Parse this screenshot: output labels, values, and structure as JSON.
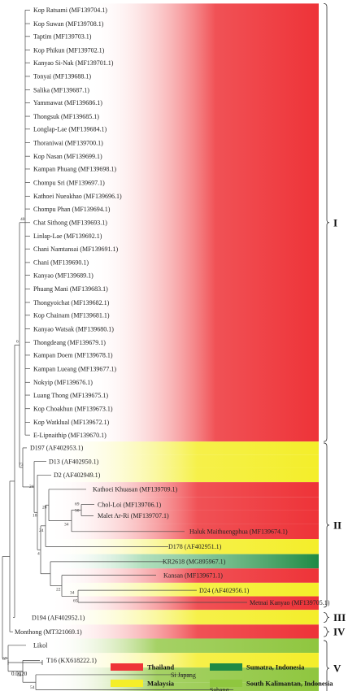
{
  "tips": [
    {
      "id": "t01",
      "label": "Kop Ratsami (MF139704.1)",
      "group": "Thailand",
      "clade": "I"
    },
    {
      "id": "t02",
      "label": "Kop Suwan (MF139708.1)",
      "group": "Thailand",
      "clade": "I"
    },
    {
      "id": "t03",
      "label": "Taptim (MF139703.1)",
      "group": "Thailand",
      "clade": "I"
    },
    {
      "id": "t04",
      "label": "Kop Phikun (MF139702.1)",
      "group": "Thailand",
      "clade": "I"
    },
    {
      "id": "t05",
      "label": "Kanyao Si-Nak (MF139701.1)",
      "group": "Thailand",
      "clade": "I"
    },
    {
      "id": "t06",
      "label": "Tonyai (MF139688.1)",
      "group": "Thailand",
      "clade": "I"
    },
    {
      "id": "t07",
      "label": "Salika (MF139687.1)",
      "group": "Thailand",
      "clade": "I"
    },
    {
      "id": "t08",
      "label": "Yammawat (MF139686.1)",
      "group": "Thailand",
      "clade": "I"
    },
    {
      "id": "t09",
      "label": "Thongsuk (MF139685.1)",
      "group": "Thailand",
      "clade": "I"
    },
    {
      "id": "t10",
      "label": "Longlap-Lae (MF139684.1)",
      "group": "Thailand",
      "clade": "I"
    },
    {
      "id": "t11",
      "label": "Thoraniwai (MF139700.1)",
      "group": "Thailand",
      "clade": "I"
    },
    {
      "id": "t12",
      "label": "Kop Nasan (MF139699.1)",
      "group": "Thailand",
      "clade": "I"
    },
    {
      "id": "t13",
      "label": "Kampan Phuang (MF139698.1)",
      "group": "Thailand",
      "clade": "I"
    },
    {
      "id": "t14",
      "label": "Chompu Sri (MF139697.1)",
      "group": "Thailand",
      "clade": "I"
    },
    {
      "id": "t15",
      "label": "Kathoei Nueakhao (MF139696.1)",
      "group": "Thailand",
      "clade": "I"
    },
    {
      "id": "t16",
      "label": "Chompu Phan (MF139694.1)",
      "group": "Thailand",
      "clade": "I"
    },
    {
      "id": "t17",
      "label": "Chat Sithong (MF139693.1)",
      "group": "Thailand",
      "clade": "I"
    },
    {
      "id": "t18",
      "label": "Linlap-Lae (MF139692.1)",
      "group": "Thailand",
      "clade": "I"
    },
    {
      "id": "t19",
      "label": "Chani Namtansai (MF139691.1)",
      "group": "Thailand",
      "clade": "I"
    },
    {
      "id": "t20",
      "label": "Chani (MF139690.1)",
      "group": "Thailand",
      "clade": "I"
    },
    {
      "id": "t21",
      "label": "Kanyao (MF139689.1)",
      "group": "Thailand",
      "clade": "I"
    },
    {
      "id": "t22",
      "label": "Phuang Mani (MF139683.1)",
      "group": "Thailand",
      "clade": "I"
    },
    {
      "id": "t23",
      "label": "Thongyoichat (MF139682.1)",
      "group": "Thailand",
      "clade": "I"
    },
    {
      "id": "t24",
      "label": "Kop Chainam (MF139681.1)",
      "group": "Thailand",
      "clade": "I"
    },
    {
      "id": "t25",
      "label": "Kanyao Watsak (MF139680.1)",
      "group": "Thailand",
      "clade": "I"
    },
    {
      "id": "t26",
      "label": "Thongdeang (MF139679.1)",
      "group": "Thailand",
      "clade": "I"
    },
    {
      "id": "t27",
      "label": "Kampan Doem (MF139678.1)",
      "group": "Thailand",
      "clade": "I"
    },
    {
      "id": "t28",
      "label": "Kampan Lueang (MF139677.1)",
      "group": "Thailand",
      "clade": "I"
    },
    {
      "id": "t29",
      "label": "Nokyip (MF139676.1)",
      "group": "Thailand",
      "clade": "I"
    },
    {
      "id": "t30",
      "label": "Luang Thong (MF139675.1)",
      "group": "Thailand",
      "clade": "I"
    },
    {
      "id": "t31",
      "label": "Kop Choakhun (MF139673.1)",
      "group": "Thailand",
      "clade": "I"
    },
    {
      "id": "t32",
      "label": "Kop Watklual (MF139672.1)",
      "group": "Thailand",
      "clade": "I"
    },
    {
      "id": "t33",
      "label": "E-Lipnaithip (MF139670.1)",
      "group": "Thailand",
      "clade": "I"
    },
    {
      "id": "t34",
      "label": "D197 (AF402953.1)",
      "group": "Malaysia",
      "clade": "II"
    },
    {
      "id": "t35",
      "label": "D13 (AF402950.1)",
      "group": "Malaysia",
      "clade": "II"
    },
    {
      "id": "t36",
      "label": "D2 (AF402949.1)",
      "group": "Malaysia",
      "clade": "II"
    },
    {
      "id": "t37",
      "label": "Kathoei Khuasan (MF139709.1)",
      "group": "Thailand",
      "clade": "II"
    },
    {
      "id": "t38",
      "label": "Chol-Loi (MF139706.1)",
      "group": "Thailand",
      "clade": "II"
    },
    {
      "id": "t39",
      "label": "Malet Ar-Ri (MF139707.1)",
      "group": "Thailand",
      "clade": "II"
    },
    {
      "id": "t40",
      "label": "Haluk Maithuengphua (MF139674.1)",
      "group": "Thailand",
      "clade": "II"
    },
    {
      "id": "t41",
      "label": "D178 (AF402951.1)",
      "group": "Malaysia",
      "clade": "II"
    },
    {
      "id": "t42",
      "label": "KR2618 (MG895967.1)",
      "group": "Sumatra",
      "clade": "II"
    },
    {
      "id": "t43",
      "label": "Kansan (MF139671.1)",
      "group": "Thailand",
      "clade": "II"
    },
    {
      "id": "t44",
      "label": "D24 (AF402956.1)",
      "group": "Malaysia",
      "clade": "II"
    },
    {
      "id": "t45",
      "label": "Metnai Kanyao (MF139705.1)",
      "group": "Thailand",
      "clade": "II"
    },
    {
      "id": "t46",
      "label": "D194 (AF402952.1)",
      "group": "Malaysia",
      "clade": "III"
    },
    {
      "id": "t47",
      "label": "Monthong (MT321069.1)",
      "group": "Thailand",
      "clade": "IV"
    },
    {
      "id": "t48",
      "label": "Likol",
      "group": "SouthKalimantan",
      "clade": "V"
    },
    {
      "id": "t49",
      "label": "T16 (KX618222.1)",
      "group": "Malaysia",
      "clade": "V"
    },
    {
      "id": "t50",
      "label": "Si Japang",
      "group": "SouthKalimantan",
      "clade": "V"
    },
    {
      "id": "t51",
      "label": "Sahang",
      "group": "SouthKalimantan",
      "clade": "V"
    }
  ],
  "support_values": [
    {
      "node": "n_cladeI",
      "value": "40"
    },
    {
      "node": "n_I_II",
      "value": "6"
    },
    {
      "node": "n_II",
      "value": "73"
    },
    {
      "node": "n_D13_D2",
      "value": "24"
    },
    {
      "node": "n_D2_rest",
      "value": "18"
    },
    {
      "node": "n_K_group",
      "value": "28"
    },
    {
      "node": "n_chol_haluk",
      "value": "34"
    },
    {
      "node": "n_chol_malet",
      "value": "69"
    },
    {
      "node": "n_chol_malet_b",
      "value": "50"
    },
    {
      "node": "n_K_D178",
      "value": "24"
    },
    {
      "node": "n_KR_rest",
      "value": "4"
    },
    {
      "node": "n_kansan_rest",
      "value": "22"
    },
    {
      "node": "n_D24_metnai",
      "value": "34"
    },
    {
      "node": "n_D24_metnai_b",
      "value": "65"
    },
    {
      "node": "n_V",
      "value": "67"
    },
    {
      "node": "n_T16_rest",
      "value": "54"
    },
    {
      "node": "n_sijapang_sahang",
      "value": "54"
    }
  ],
  "clades": [
    {
      "id": "I",
      "label": "I"
    },
    {
      "id": "II",
      "label": "II"
    },
    {
      "id": "III",
      "label": "III"
    },
    {
      "id": "IV",
      "label": "IV"
    },
    {
      "id": "V",
      "label": "V"
    }
  ],
  "colors": {
    "Thailand": "#ee3338",
    "Malaysia": "#f4ee2a",
    "Sumatra": "#1f8a45",
    "SouthKalimantan": "#8fc63f",
    "branch": "#444444"
  },
  "legend": [
    {
      "group": "Thailand",
      "label": "Thailand"
    },
    {
      "group": "Sumatra",
      "label": "Sumatra, Indonesia"
    },
    {
      "group": "Malaysia",
      "label": "Malaysia"
    },
    {
      "group": "SouthKalimantan",
      "label": "South Kalimantan, Indonesia"
    }
  ],
  "scale_bar": {
    "label": "0.0020"
  }
}
